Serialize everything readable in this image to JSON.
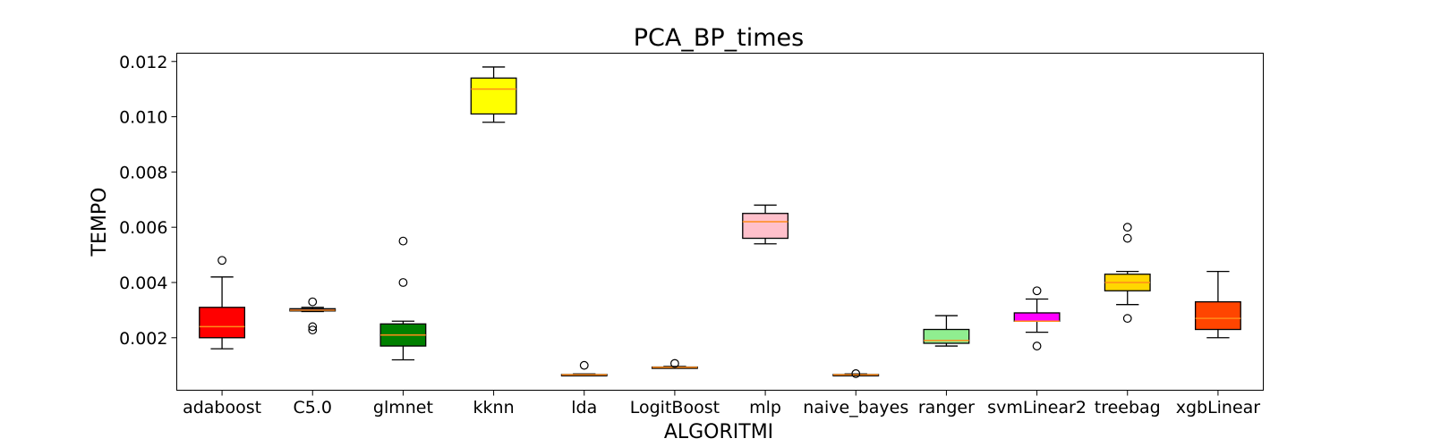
{
  "chart_data": {
    "type": "boxplot",
    "title": "PCA_BP_times",
    "xlabel": "ALGORITMI",
    "ylabel": "TEMPO",
    "ylim": [
      0.0001,
      0.0123
    ],
    "yticks": [
      "0.002",
      "0.004",
      "0.006",
      "0.008",
      "0.010",
      "0.012"
    ],
    "yticks_values": [
      0.002,
      0.004,
      0.006,
      0.008,
      0.01,
      0.012
    ],
    "grid": false,
    "median_color": "#ff8c1a",
    "categories": [
      "adaboost",
      "C5.0",
      "glmnet",
      "kknn",
      "lda",
      "LogitBoost",
      "mlp",
      "naive_bayes",
      "ranger",
      "svmLinear2",
      "treebag",
      "xgbLinear"
    ],
    "boxes": [
      {
        "name": "adaboost",
        "color": "#ff0000",
        "whislo": 0.0016,
        "q1": 0.002,
        "med": 0.0024,
        "q3": 0.0031,
        "whishi": 0.0042,
        "fliers": [
          0.0048
        ]
      },
      {
        "name": "C5.0",
        "color": "#0000ff",
        "whislo": 0.00295,
        "q1": 0.00297,
        "med": 0.003,
        "q3": 0.00305,
        "whishi": 0.0031,
        "fliers": [
          0.0033,
          0.0024,
          0.00228
        ]
      },
      {
        "name": "glmnet",
        "color": "#008000",
        "whislo": 0.0012,
        "q1": 0.0017,
        "med": 0.0021,
        "q3": 0.0025,
        "whishi": 0.0026,
        "fliers": [
          0.0055,
          0.004
        ]
      },
      {
        "name": "kknn",
        "color": "#ffff00",
        "whislo": 0.0098,
        "q1": 0.0101,
        "med": 0.011,
        "q3": 0.0114,
        "whishi": 0.0118,
        "fliers": []
      },
      {
        "name": "lda",
        "color": "#8b4513",
        "whislo": 0.00063,
        "q1": 0.00065,
        "med": 0.00066,
        "q3": 0.00067,
        "whishi": 0.00069,
        "fliers": [
          0.001
        ]
      },
      {
        "name": "LogitBoost",
        "color": "#9400d3",
        "whislo": 0.00091,
        "q1": 0.00092,
        "med": 0.00093,
        "q3": 0.00094,
        "whishi": 0.00096,
        "fliers": [
          0.00107
        ]
      },
      {
        "name": "mlp",
        "color": "#ffc0cb",
        "whislo": 0.0054,
        "q1": 0.0056,
        "med": 0.0062,
        "q3": 0.0065,
        "whishi": 0.0068,
        "fliers": []
      },
      {
        "name": "naive_bayes",
        "color": "#808080",
        "whislo": 0.00063,
        "q1": 0.00065,
        "med": 0.00066,
        "q3": 0.00067,
        "whishi": 0.00069,
        "fliers": [
          0.0007
        ]
      },
      {
        "name": "ranger",
        "color": "#90ee90",
        "whislo": 0.0017,
        "q1": 0.0018,
        "med": 0.0019,
        "q3": 0.0023,
        "whishi": 0.0028,
        "fliers": []
      },
      {
        "name": "svmLinear2",
        "color": "#ff00ff",
        "whislo": 0.0022,
        "q1": 0.0026,
        "med": 0.0026,
        "q3": 0.0029,
        "whishi": 0.0034,
        "fliers": [
          0.0037,
          0.0017
        ]
      },
      {
        "name": "treebag",
        "color": "#ffd700",
        "whislo": 0.0032,
        "q1": 0.0037,
        "med": 0.004,
        "q3": 0.0043,
        "whishi": 0.0044,
        "fliers": [
          0.006,
          0.0056,
          0.0027
        ]
      },
      {
        "name": "xgbLinear",
        "color": "#ff4500",
        "whislo": 0.002,
        "q1": 0.0023,
        "med": 0.0027,
        "q3": 0.0033,
        "whishi": 0.0044,
        "fliers": []
      }
    ]
  }
}
